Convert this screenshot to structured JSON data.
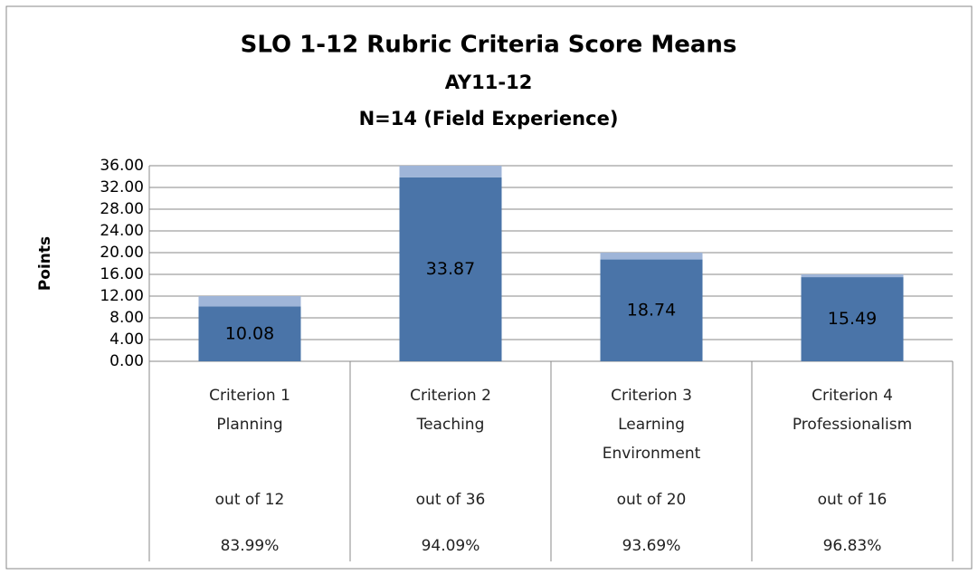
{
  "chart_data": {
    "type": "stacked_bar",
    "title": "SLO 1-12 Rubric Criteria Score Means",
    "subtitles": [
      "AY11-12",
      "N=14 (Field Experience)"
    ],
    "y_label": "Points",
    "categories": [
      [
        "Criterion 1",
        "Planning"
      ],
      [
        "Criterion 2",
        "Teaching"
      ],
      [
        "Criterion 3",
        "Learning",
        "Environment"
      ],
      [
        "Criterion 4",
        "Professionalism"
      ]
    ],
    "category_notes": [
      "out of 12",
      "out of 36",
      "out of 20",
      "out of 16"
    ],
    "category_percents": [
      "83.99%",
      "94.09%",
      "93.69%",
      "96.83%"
    ],
    "series": [
      {
        "color": "#4a74a8",
        "values": [
          10.08,
          33.87,
          18.74,
          15.49
        ],
        "show_labels": true
      },
      {
        "color": "#9fb5d8",
        "values": [
          1.92,
          2.13,
          1.26,
          0.51
        ],
        "show_labels": false
      }
    ],
    "ylim": [
      0,
      36
    ],
    "yticks": [
      {
        "value": 0,
        "label": "0.00"
      },
      {
        "value": 4,
        "label": "4.00"
      },
      {
        "value": 8,
        "label": "8.00"
      },
      {
        "value": 12,
        "label": "12.00"
      },
      {
        "value": 16,
        "label": "16.00"
      },
      {
        "value": 20,
        "label": "20.00"
      },
      {
        "value": 24,
        "label": "24.00"
      },
      {
        "value": 28,
        "label": "28.00"
      },
      {
        "value": 32,
        "label": "32.00"
      },
      {
        "value": 36,
        "label": "36.00"
      }
    ],
    "grid": true
  }
}
